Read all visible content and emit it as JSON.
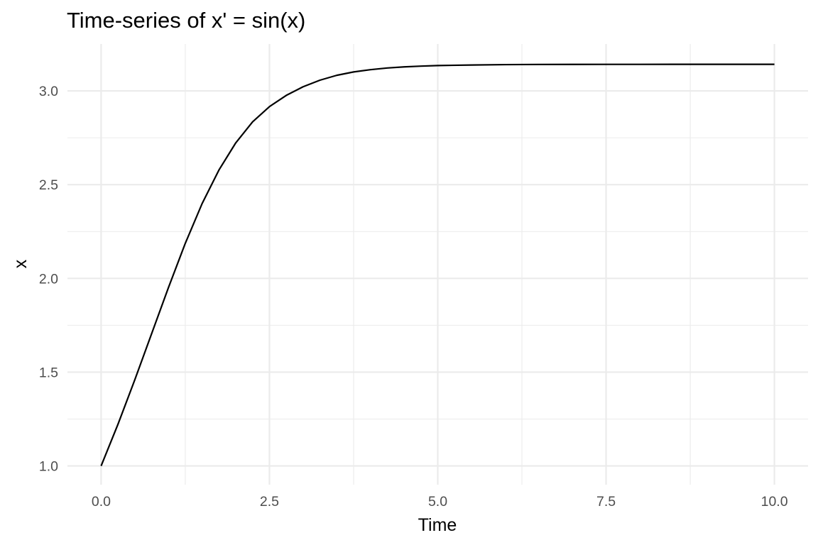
{
  "chart_data": {
    "type": "line",
    "title": "Time-series of x' = sin(x)",
    "xlabel": "Time",
    "ylabel": "x",
    "xlim": [
      -0.5,
      10.5
    ],
    "ylim": [
      0.9,
      3.25
    ],
    "x_ticks": [
      0,
      2.5,
      5,
      7.5,
      10
    ],
    "x_tick_labels": [
      "0.0",
      "2.5",
      "5.0",
      "7.5",
      "10.0"
    ],
    "x_minor_ticks": [
      1.25,
      3.75,
      6.25,
      8.75
    ],
    "y_ticks": [
      1.0,
      1.5,
      2.0,
      2.5,
      3.0
    ],
    "y_tick_labels": [
      "1.0",
      "1.5",
      "2.0",
      "2.5",
      "3.0"
    ],
    "y_minor_ticks": [
      1.25,
      1.75,
      2.25,
      2.75
    ],
    "grid": true,
    "legend": "none",
    "line_color": "#000000",
    "grid_color": "#ebebeb",
    "series": [
      {
        "x": [
          0,
          0.25,
          0.5,
          0.75,
          1,
          1.25,
          1.5,
          1.75,
          2,
          2.25,
          2.5,
          2.75,
          3,
          3.25,
          3.5,
          3.75,
          4,
          4.25,
          4.5,
          4.75,
          5,
          5.5,
          6,
          6.5,
          7,
          7.5,
          8,
          8.5,
          9,
          9.5,
          10
        ],
        "y": [
          1.0,
          1.222,
          1.459,
          1.705,
          1.951,
          2.187,
          2.399,
          2.578,
          2.723,
          2.835,
          2.916,
          2.976,
          3.022,
          3.057,
          3.083,
          3.101,
          3.113,
          3.122,
          3.128,
          3.132,
          3.135,
          3.138,
          3.14,
          3.141,
          3.1413,
          3.1414,
          3.1415,
          3.1416,
          3.1416,
          3.1416,
          3.1416
        ]
      }
    ]
  }
}
